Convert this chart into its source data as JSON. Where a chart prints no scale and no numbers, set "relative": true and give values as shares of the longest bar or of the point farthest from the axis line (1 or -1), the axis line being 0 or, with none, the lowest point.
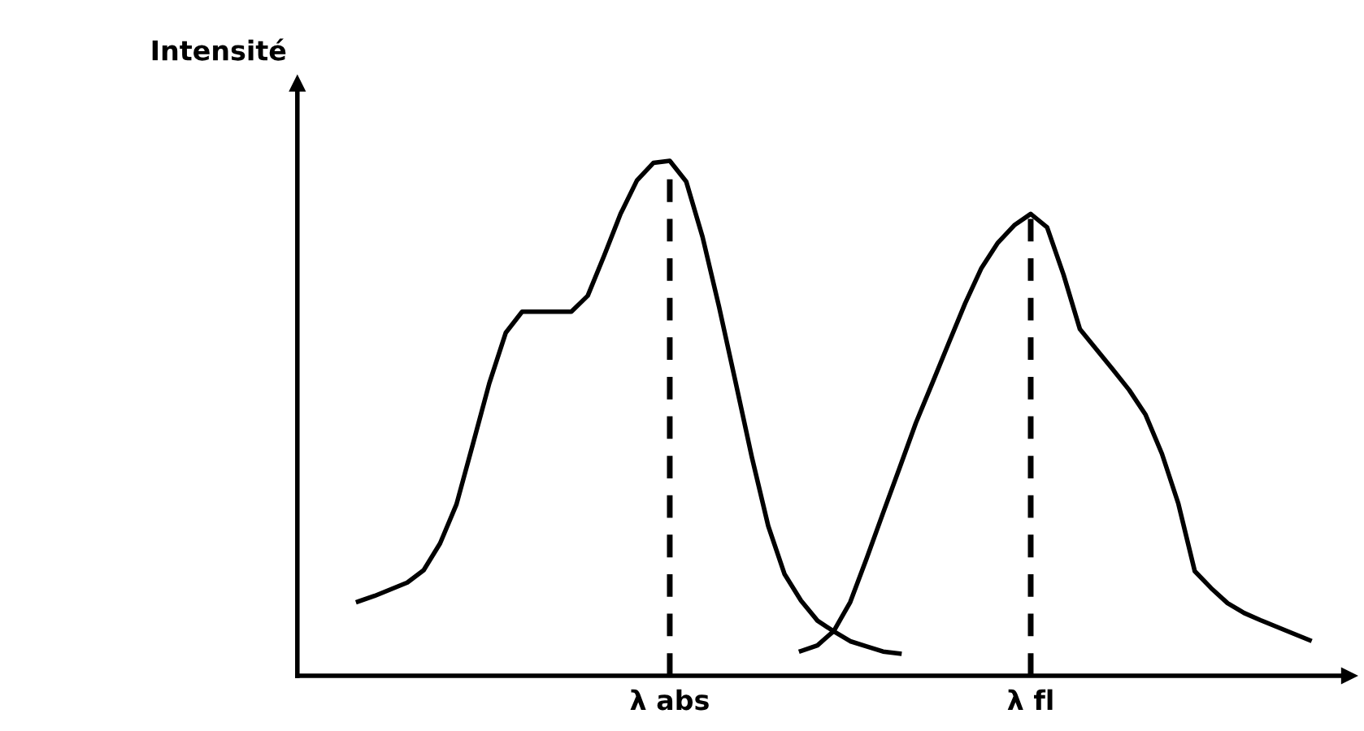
{
  "chart_data": {
    "type": "line",
    "relative": true,
    "ylabel": "Intensité",
    "line_style": "solid",
    "categories": [
      null,
      null,
      null,
      null,
      null,
      null,
      null,
      null,
      null,
      null,
      null,
      null,
      null,
      null,
      null,
      null,
      null,
      null,
      null,
      "λ abs",
      null,
      null,
      null,
      null,
      null,
      null,
      null,
      null,
      null,
      null,
      null,
      null,
      null,
      null,
      null,
      null,
      null,
      null,
      null,
      null,
      null,
      "λ fl",
      null,
      null,
      null,
      null,
      null,
      null,
      null,
      null,
      null,
      null,
      null,
      null,
      null,
      null,
      null,
      null,
      null
    ],
    "series": [
      {
        "color": "#000000",
        "values": [
          0.144,
          0.155,
          0.168,
          0.181,
          0.205,
          0.257,
          0.333,
          0.45,
          0.568,
          0.666,
          0.707,
          0.707,
          0.707,
          0.707,
          0.738,
          0.816,
          0.897,
          0.962,
          0.996,
          1,
          0.96,
          0.852,
          0.717,
          0.572,
          0.425,
          0.291,
          0.197,
          0.146,
          0.107,
          0.086,
          0.067,
          0.057,
          0.047,
          0.043,
          null,
          null,
          null,
          null,
          null,
          null,
          null,
          null,
          null,
          null,
          null,
          null,
          null,
          null,
          null,
          null,
          null,
          null,
          null,
          null,
          null,
          null,
          null,
          null,
          null
        ]
      },
      {
        "color": "#000000",
        "values": [
          null,
          null,
          null,
          null,
          null,
          null,
          null,
          null,
          null,
          null,
          null,
          null,
          null,
          null,
          null,
          null,
          null,
          null,
          null,
          null,
          null,
          null,
          null,
          null,
          null,
          null,
          null,
          0.048,
          0.059,
          0.087,
          0.143,
          0.228,
          0.316,
          0.403,
          0.491,
          0.568,
          0.646,
          0.723,
          0.792,
          0.841,
          0.875,
          0.897,
          0.871,
          0.779,
          0.673,
          0.634,
          0.595,
          0.555,
          0.507,
          0.431,
          0.334,
          0.203,
          0.17,
          0.141,
          0.122,
          0.108,
          0.095,
          0.082,
          0.069
        ]
      }
    ],
    "ref_lines": [
      {
        "axis": "x",
        "value": "λ abs",
        "line_style": "dashed",
        "color": "#000000"
      },
      {
        "axis": "x",
        "value": "λ fl",
        "line_style": "dashed",
        "color": "#000000"
      }
    ]
  }
}
